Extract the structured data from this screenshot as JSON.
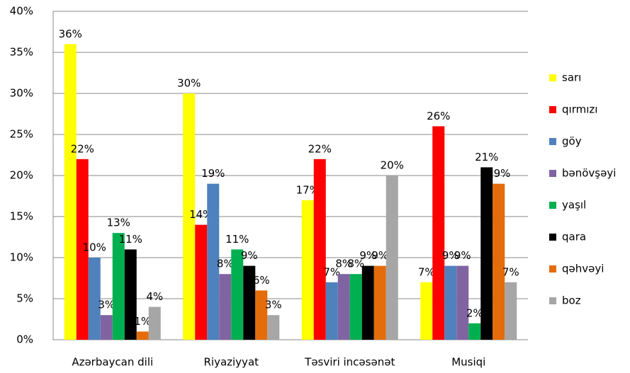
{
  "chart_data": {
    "type": "bar",
    "categories": [
      "Azərbaycan dili",
      "Riyaziyyat",
      "Təsviri incəsənət",
      "Musiqi"
    ],
    "series": [
      {
        "name": "sarı",
        "color": "#ffff00",
        "values": [
          36,
          30,
          17,
          7
        ],
        "value_labels": [
          "36%",
          "30%",
          "17%",
          "7%"
        ]
      },
      {
        "name": "qırmızı",
        "color": "#ff0000",
        "values": [
          22,
          14,
          22,
          26
        ],
        "value_labels": [
          "22%",
          "14%",
          "22%",
          "26%"
        ]
      },
      {
        "name": "göy",
        "color": "#4f81bd",
        "values": [
          10,
          19,
          7,
          9
        ],
        "value_labels": [
          "10%",
          "19%",
          "7%",
          "9%"
        ]
      },
      {
        "name": "bənövşəyi",
        "color": "#8064a2",
        "values": [
          3,
          8,
          8,
          9
        ],
        "value_labels": [
          "3%",
          "8%",
          "8%",
          "9%"
        ]
      },
      {
        "name": "yaşıl",
        "color": "#00b050",
        "values": [
          13,
          11,
          8,
          2
        ],
        "value_labels": [
          "13%",
          "11%",
          "8%",
          "2%"
        ]
      },
      {
        "name": "qara",
        "color": "#000000",
        "values": [
          11,
          9,
          9,
          21
        ],
        "value_labels": [
          "11%",
          "9%",
          "9%",
          "21%"
        ]
      },
      {
        "name": "qəhvəyi",
        "color": "#e46c0a",
        "values": [
          1,
          6,
          9,
          19
        ],
        "value_labels": [
          "1%",
          "6%",
          "9%",
          "19%"
        ]
      },
      {
        "name": "boz",
        "color": "#a6a6a6",
        "values": [
          4,
          3,
          20,
          7
        ],
        "value_labels": [
          "4%",
          "3%",
          "20%",
          "7%"
        ]
      }
    ],
    "ylim": [
      0,
      40
    ],
    "yticks": [
      {
        "value": 0,
        "label": "0%"
      },
      {
        "value": 5,
        "label": "5%"
      },
      {
        "value": 10,
        "label": "10%"
      },
      {
        "value": 15,
        "label": "15%"
      },
      {
        "value": 20,
        "label": "20%"
      },
      {
        "value": 25,
        "label": "25%"
      },
      {
        "value": 30,
        "label": "30%"
      },
      {
        "value": 35,
        "label": "35%"
      },
      {
        "value": 40,
        "label": "40%"
      }
    ],
    "grid": true,
    "legend": "right"
  }
}
